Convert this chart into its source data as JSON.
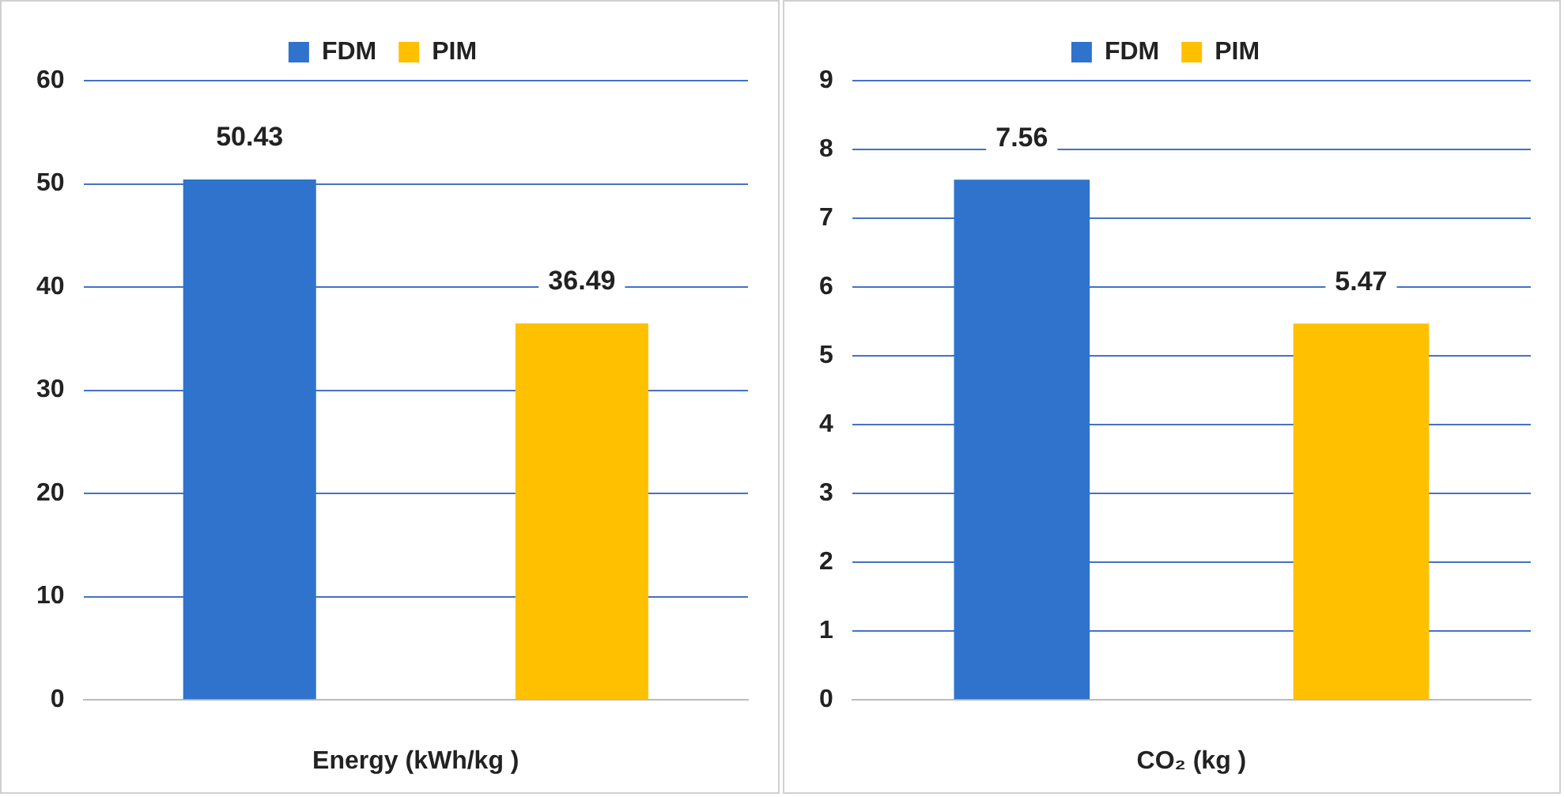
{
  "chart_data": [
    {
      "type": "bar",
      "categories": [
        null
      ],
      "xlabel": "Energy (kWh/kg )",
      "series": [
        {
          "name": "FDM",
          "color": "#2f73cc",
          "values": [
            50.43
          ]
        },
        {
          "name": "PIM",
          "color": "#ffc000",
          "values": [
            36.49
          ]
        }
      ],
      "ylim": [
        0,
        60
      ],
      "yticks": [
        0,
        10,
        20,
        30,
        40,
        50,
        60
      ],
      "grid": "y",
      "legend": "top",
      "data_labels": true
    },
    {
      "type": "bar",
      "categories": [
        null
      ],
      "xlabel": "CO₂ (kg )",
      "series": [
        {
          "name": "FDM",
          "color": "#2f73cc",
          "values": [
            7.56
          ]
        },
        {
          "name": "PIM",
          "color": "#ffc000",
          "values": [
            5.47
          ]
        }
      ],
      "ylim": [
        0,
        9
      ],
      "yticks": [
        0,
        1,
        2,
        3,
        4,
        5,
        6,
        7,
        8,
        9
      ],
      "grid": "y",
      "legend": "top",
      "data_labels": true
    }
  ]
}
